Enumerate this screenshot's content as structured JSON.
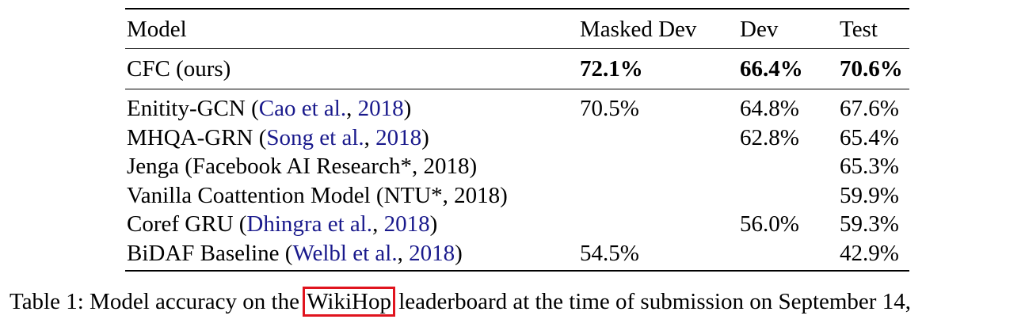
{
  "table": {
    "headers": {
      "model": "Model",
      "masked_dev": "Masked Dev",
      "dev": "Dev",
      "test": "Test"
    },
    "ours": {
      "model": "CFC (ours)",
      "masked_dev": "72.1%",
      "dev": "66.4%",
      "test": "70.6%"
    },
    "rows": [
      {
        "name": "Enitity-GCN (",
        "cite_authors": "Cao et al.",
        "cite_sep": ", ",
        "cite_year": "2018",
        "close": ")",
        "masked_dev": "70.5%",
        "dev": "64.8%",
        "test": "67.6%"
      },
      {
        "name": "MHQA-GRN (",
        "cite_authors": "Song et al.",
        "cite_sep": ", ",
        "cite_year": "2018",
        "close": ")",
        "masked_dev": "",
        "dev": "62.8%",
        "test": "65.4%"
      },
      {
        "name": "Jenga (Facebook AI Research*, 2018)",
        "cite_authors": "",
        "cite_sep": "",
        "cite_year": "",
        "close": "",
        "masked_dev": "",
        "dev": "",
        "test": "65.3%"
      },
      {
        "name": "Vanilla Coattention Model (NTU*, 2018)",
        "cite_authors": "",
        "cite_sep": "",
        "cite_year": "",
        "close": "",
        "masked_dev": "",
        "dev": "",
        "test": "59.9%"
      },
      {
        "name": "Coref GRU (",
        "cite_authors": "Dhingra et al.",
        "cite_sep": ", ",
        "cite_year": "2018",
        "close": ")",
        "masked_dev": "",
        "dev": "56.0%",
        "test": "59.3%"
      },
      {
        "name": "BiDAF Baseline (",
        "cite_authors": "Welbl et al.",
        "cite_sep": ", ",
        "cite_year": "2018",
        "close": ")",
        "masked_dev": "54.5%",
        "dev": "",
        "test": "42.9%"
      }
    ]
  },
  "caption": {
    "prefix": "Table 1: Model accuracy on the ",
    "highlight": "WikiHop",
    "suffix": " leaderboard at the time of submission on September 14,"
  },
  "colors": {
    "citation": "#1a1a8c",
    "highlight_box": "#e0141e"
  }
}
